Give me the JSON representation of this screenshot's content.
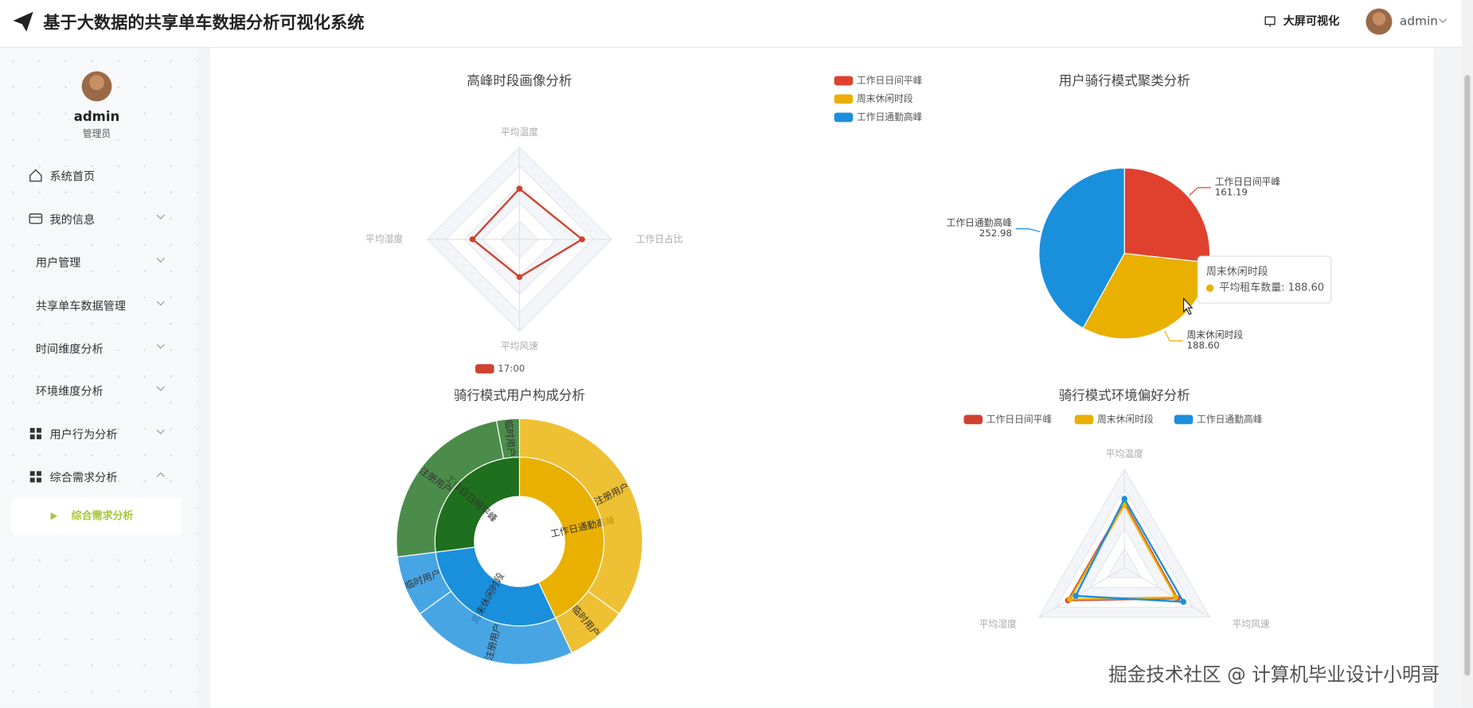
{
  "header": {
    "title": "基于大数据的共享单车数据分析可视化系统",
    "screen_link": "大屏可视化",
    "user": "admin"
  },
  "sidebar": {
    "user": "admin",
    "role": "管理员",
    "menu": [
      "系统首页",
      "我的信息",
      "用户管理",
      "共享单车数据管理",
      "时间维度分析",
      "环境维度分析",
      "用户行为分析",
      "综合需求分析"
    ],
    "active_item": "综合需求分析"
  },
  "watermark": "掘金技术社区 @ 计算机毕业设计小明哥",
  "chart_data": [
    {
      "type": "radar",
      "title": "高峰时段画像分析",
      "indicators": [
        "平均温度",
        "工作日占比",
        "平均风速",
        "平均湿度"
      ],
      "rlim": [
        0,
        1
      ],
      "series": [
        {
          "name": "17:00",
          "color": "#d0412f",
          "values": [
            0.55,
            0.68,
            0.41,
            0.51
          ]
        }
      ]
    },
    {
      "type": "pie",
      "title": "用户骑行模式聚类分析",
      "categories": [
        "工作日日间平峰",
        "周末休闲时段",
        "工作日通勤高峰"
      ],
      "values": [
        161.19,
        188.6,
        252.98
      ],
      "value_labels": [
        "161.19",
        "188.60",
        "252.98"
      ],
      "colors": [
        "#e0412f",
        "#eab000",
        "#1a8fdc"
      ],
      "tooltip": {
        "title": "周末休闲时段",
        "text": "平均租车数量: 188.60"
      }
    },
    {
      "type": "sunburst",
      "title": "骑行模式用户构成分析",
      "nodes": [
        {
          "name": "工作日通勤高峰",
          "color": "#eab000",
          "value": 43,
          "children": [
            {
              "name": "注册用户",
              "value": 35
            },
            {
              "name": "临时用户",
              "value": 8
            }
          ]
        },
        {
          "name": "周末休闲时段",
          "color": "#1a8fdc",
          "value": 30,
          "children": [
            {
              "name": "注册用户",
              "value": 22
            },
            {
              "name": "临时用户",
              "value": 8
            }
          ]
        },
        {
          "name": "工作日日间平峰",
          "color": "#1e6f1e",
          "value": 27,
          "children": [
            {
              "name": "注册用户",
              "value": 24
            },
            {
              "name": "临时用户",
              "value": 3
            }
          ]
        }
      ]
    },
    {
      "type": "radar",
      "title": "骑行模式环境偏好分析",
      "indicators": [
        "平均温度",
        "平均风速",
        "平均湿度"
      ],
      "rlim": [
        0,
        1
      ],
      "series": [
        {
          "name": "工作日日间平峰",
          "color": "#d0412f",
          "values": [
            0.66,
            0.62,
            0.66
          ]
        },
        {
          "name": "周末休闲时段",
          "color": "#eab000",
          "values": [
            0.64,
            0.6,
            0.64
          ]
        },
        {
          "name": "工作日通勤高峰",
          "color": "#1a8fdc",
          "values": [
            0.7,
            0.69,
            0.57
          ]
        }
      ]
    }
  ]
}
